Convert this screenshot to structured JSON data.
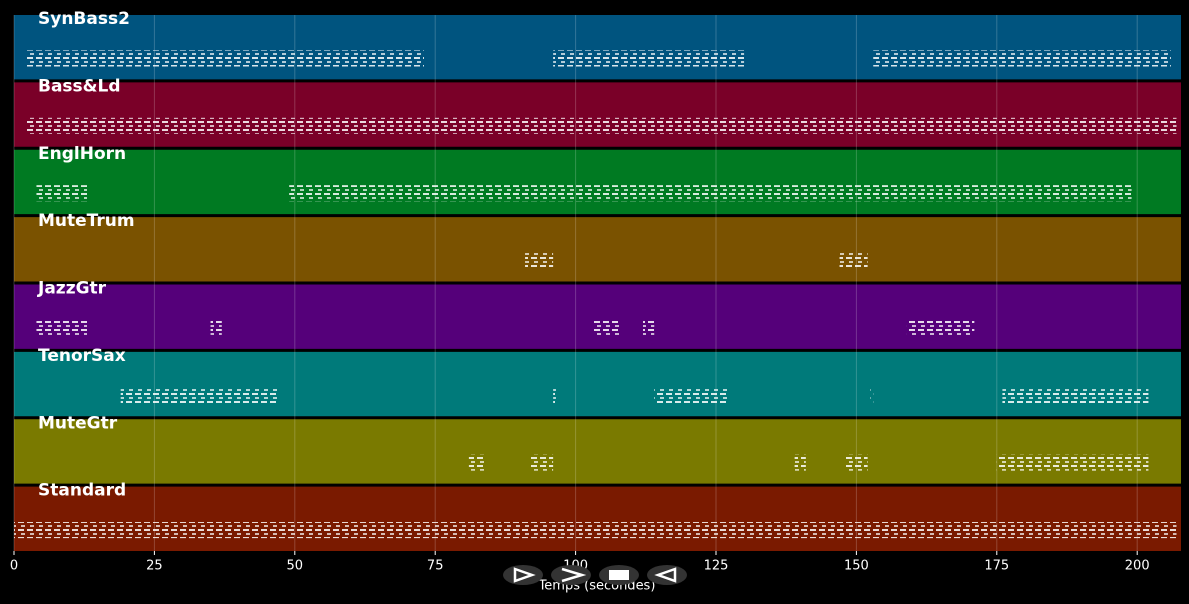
{
  "chart_data": {
    "type": "pianoroll",
    "xlabel": "Temps (secondes)",
    "xlim": [
      0,
      207.8
    ],
    "xticks": [
      0,
      25,
      50,
      75,
      100,
      125,
      150,
      175,
      200
    ],
    "grid": true,
    "series": [
      {
        "name": "SynBass2",
        "color": "#00547f",
        "spans": [
          [
            2,
            73
          ],
          [
            96,
            130
          ],
          [
            153,
            206
          ]
        ]
      },
      {
        "name": "Bass&Ld",
        "color": "#7a0028",
        "spans": [
          [
            2,
            207
          ]
        ]
      },
      {
        "name": "EnglHorn",
        "color": "#007a22",
        "spans": [
          [
            4,
            13
          ],
          [
            49,
            199
          ]
        ]
      },
      {
        "name": "MuteTrum",
        "color": "#7a5200",
        "spans": [
          [
            91,
            96
          ],
          [
            147,
            152
          ]
        ]
      },
      {
        "name": "JazzGtr",
        "color": "#55007a",
        "spans": [
          [
            4,
            13
          ],
          [
            35,
            37
          ],
          [
            103,
            108
          ],
          [
            112,
            114
          ],
          [
            159,
            171
          ]
        ]
      },
      {
        "name": "TenorSax",
        "color": "#007a7a",
        "spans": [
          [
            19,
            47
          ],
          [
            96,
            96.5
          ],
          [
            114,
            127
          ],
          [
            152.5,
            153
          ],
          [
            176,
            202
          ]
        ]
      },
      {
        "name": "MuteGtr",
        "color": "#7a7a00",
        "spans": [
          [
            81,
            84
          ],
          [
            92,
            96
          ],
          [
            139,
            141
          ],
          [
            148,
            152
          ],
          [
            175,
            202
          ]
        ]
      },
      {
        "name": "Standard",
        "color": "#7a1a00",
        "spans": [
          [
            0,
            207
          ]
        ]
      }
    ]
  }
}
